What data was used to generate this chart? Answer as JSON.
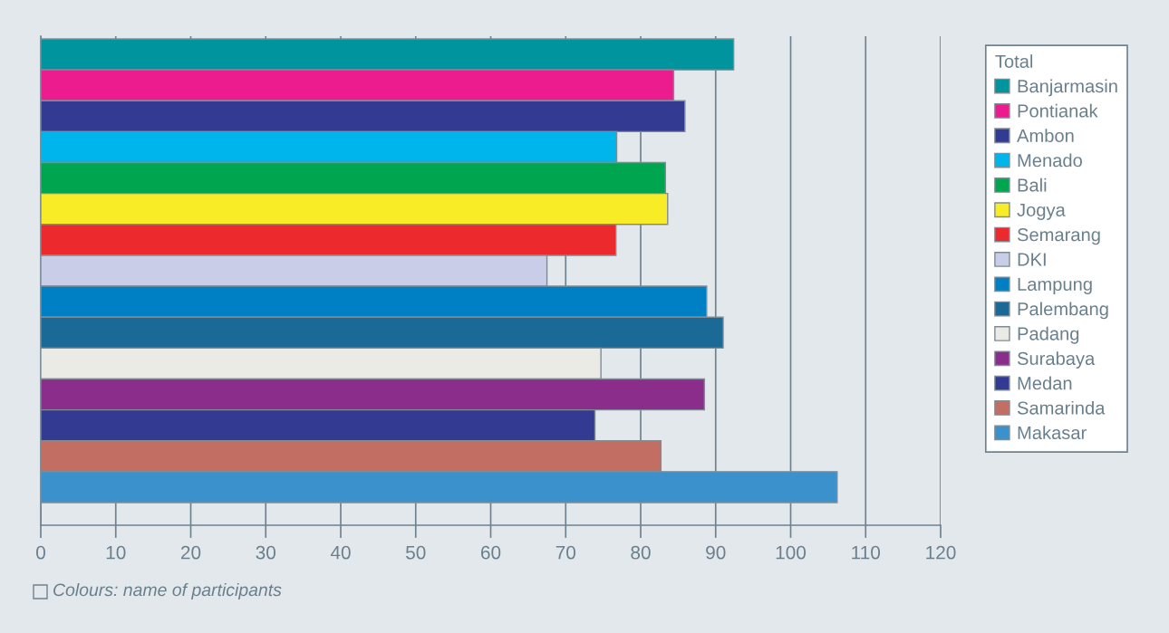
{
  "chart_data": {
    "type": "bar",
    "orientation": "horizontal",
    "categories": [
      null
    ],
    "series": [
      {
        "name": "Banjarmasin",
        "color": "#00959e",
        "values": [
          92.4
        ]
      },
      {
        "name": "Pontianak",
        "color": "#ec1c8f",
        "values": [
          84.4
        ]
      },
      {
        "name": "Ambon",
        "color": "#333a91",
        "values": [
          85.9
        ]
      },
      {
        "name": "Menado",
        "color": "#00b5ec",
        "values": [
          76.8
        ]
      },
      {
        "name": "Bali",
        "color": "#00a54f",
        "values": [
          83.3
        ]
      },
      {
        "name": "Jogya",
        "color": "#f8ec27",
        "values": [
          83.6
        ]
      },
      {
        "name": "Semarang",
        "color": "#ec2a2e",
        "values": [
          76.7
        ]
      },
      {
        "name": "DKI",
        "color": "#c9cde8",
        "values": [
          67.5
        ]
      },
      {
        "name": "Lampung",
        "color": "#0080c4",
        "values": [
          88.8
        ]
      },
      {
        "name": "Palembang",
        "color": "#1b6996",
        "values": [
          91.0
        ]
      },
      {
        "name": "Padang",
        "color": "#ebebe5",
        "values": [
          74.7
        ]
      },
      {
        "name": "Surabaya",
        "color": "#8b2d8b",
        "values": [
          88.5
        ]
      },
      {
        "name": "Medan",
        "color": "#333a91",
        "values": [
          73.9
        ]
      },
      {
        "name": "Samarinda",
        "color": "#c26e62",
        "values": [
          82.7
        ]
      },
      {
        "name": "Makasar",
        "color": "#3a91cb",
        "values": [
          106.2
        ]
      }
    ],
    "xlim": [
      0,
      120
    ],
    "xticks": [
      0,
      10,
      20,
      30,
      40,
      50,
      60,
      70,
      80,
      90,
      100,
      110,
      120
    ],
    "grid": "x",
    "legend": "right",
    "legend_title": "Total",
    "tick_labels": "x",
    "annotations": [
      "Colours: name of participants"
    ]
  }
}
